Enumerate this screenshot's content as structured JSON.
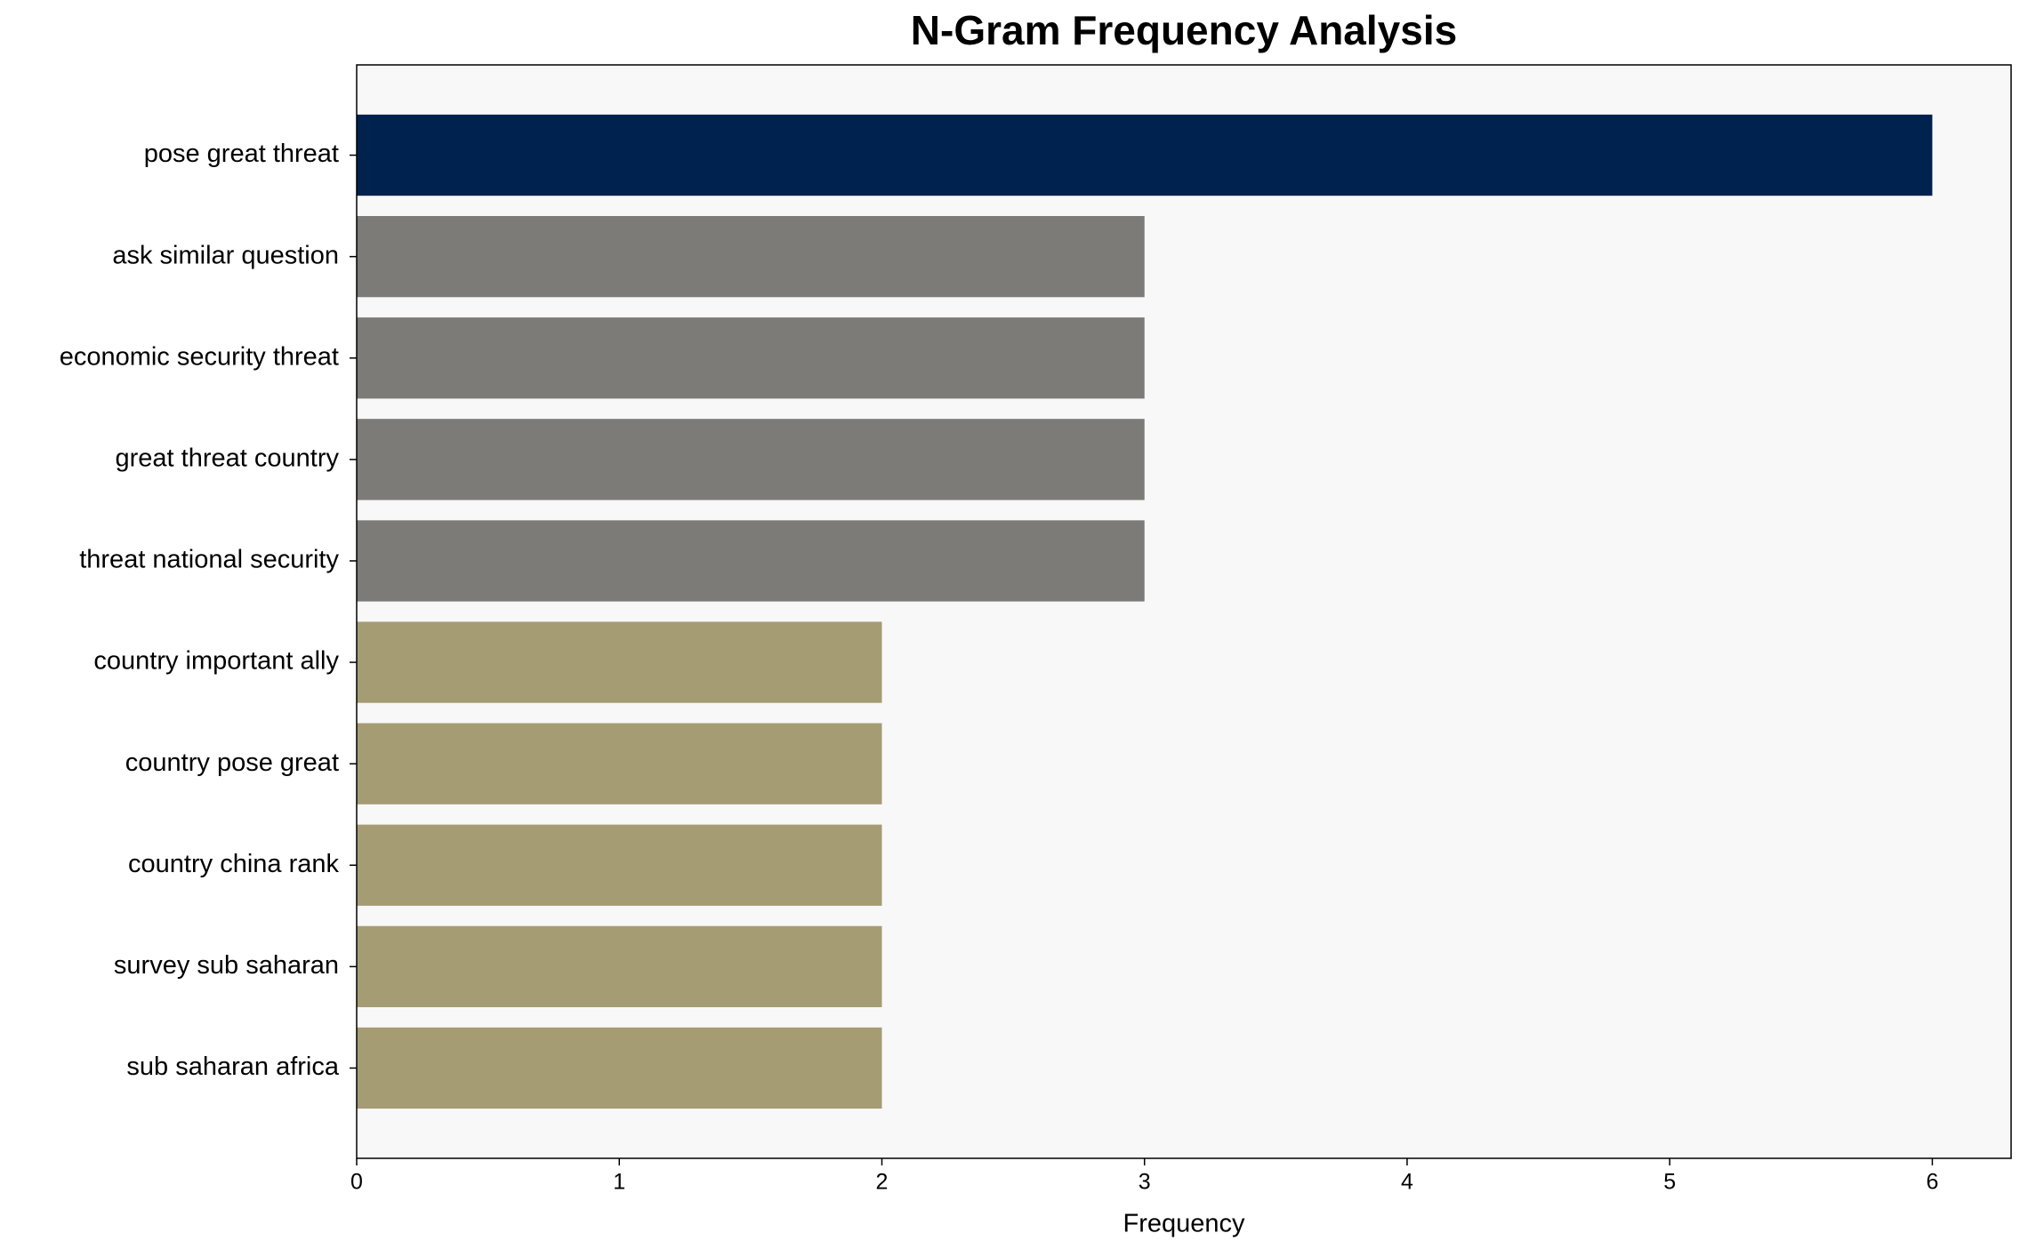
{
  "chart_data": {
    "type": "barh",
    "title": "N-Gram Frequency Analysis",
    "x_label": "Frequency",
    "categories": [
      "pose great threat",
      "ask similar question",
      "economic security threat",
      "great threat country",
      "threat national security",
      "country important ally",
      "country pose great",
      "country china rank",
      "survey sub saharan",
      "sub saharan africa"
    ],
    "values": [
      6,
      3,
      3,
      3,
      3,
      2,
      2,
      2,
      2,
      2
    ],
    "colors": [
      "#00224e",
      "#7c7b78",
      "#7c7b78",
      "#7c7b78",
      "#7c7b78",
      "#a59c74",
      "#a59c74",
      "#a59c74",
      "#a59c74",
      "#a59c74"
    ],
    "xlim": [
      0,
      6.3
    ],
    "xticks": [
      0,
      1,
      2,
      3,
      4,
      5,
      6
    ],
    "grid": false
  }
}
